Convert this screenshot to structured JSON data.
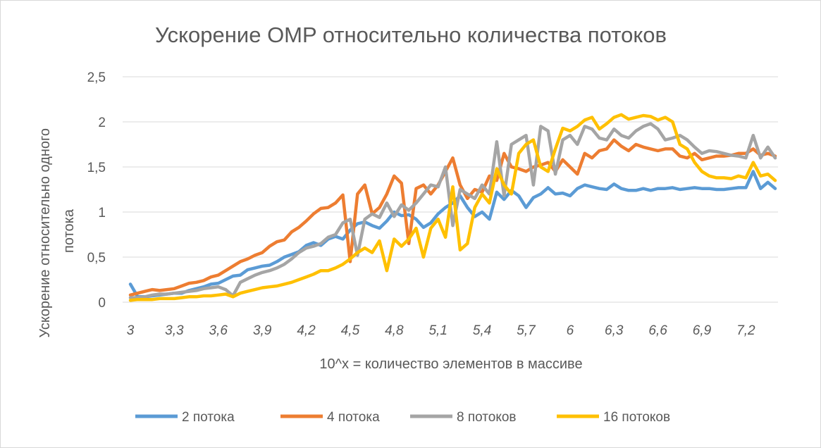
{
  "chart_data": {
    "type": "line",
    "title": "Ускорение OMP относительно количества потоков",
    "xlabel": "10^x = количество элементов в массиве",
    "ylabel_lines": [
      "Ускорение относительно одного",
      "потока"
    ],
    "ylim": [
      0,
      2.5
    ],
    "yticks": [
      "0",
      "0,5",
      "1",
      "1,5",
      "2",
      "2,5"
    ],
    "xticks": [
      "3",
      "3,3",
      "3,6",
      "3,9",
      "4,2",
      "4,5",
      "4,8",
      "5,1",
      "5,4",
      "5,7",
      "6",
      "6,3",
      "6,6",
      "6,9",
      "7,2"
    ],
    "x_start": 3,
    "x_step": 0.05,
    "grid": "horizontal",
    "legend_position": "bottom",
    "series": [
      {
        "name": "2 потока",
        "color": "#5B9BD5",
        "values": [
          0.2,
          0.06,
          0.06,
          0.07,
          0.08,
          0.09,
          0.1,
          0.1,
          0.13,
          0.15,
          0.17,
          0.2,
          0.21,
          0.25,
          0.29,
          0.3,
          0.36,
          0.38,
          0.4,
          0.41,
          0.45,
          0.5,
          0.53,
          0.56,
          0.63,
          0.66,
          0.63,
          0.7,
          0.73,
          0.7,
          0.8,
          0.87,
          0.89,
          0.85,
          0.82,
          0.9,
          1.0,
          0.96,
          0.97,
          0.92,
          0.83,
          0.88,
          0.98,
          1.05,
          1.1,
          1.18,
          1.05,
          0.95,
          1.0,
          0.92,
          1.22,
          1.14,
          1.24,
          1.18,
          1.05,
          1.16,
          1.2,
          1.27,
          1.2,
          1.21,
          1.18,
          1.26,
          1.3,
          1.28,
          1.26,
          1.25,
          1.31,
          1.26,
          1.24,
          1.24,
          1.26,
          1.24,
          1.26,
          1.26,
          1.27,
          1.25,
          1.26,
          1.27,
          1.26,
          1.26,
          1.25,
          1.25,
          1.26,
          1.27,
          1.27,
          1.45,
          1.26,
          1.33,
          1.26
        ]
      },
      {
        "name": "4 потока",
        "color": "#ED7D31",
        "values": [
          0.08,
          0.1,
          0.12,
          0.14,
          0.13,
          0.14,
          0.15,
          0.18,
          0.21,
          0.22,
          0.24,
          0.28,
          0.3,
          0.35,
          0.4,
          0.45,
          0.48,
          0.52,
          0.55,
          0.62,
          0.67,
          0.69,
          0.78,
          0.83,
          0.9,
          0.98,
          1.04,
          1.05,
          1.1,
          1.19,
          0.45,
          1.2,
          1.3,
          0.98,
          1.05,
          1.2,
          1.4,
          1.32,
          0.65,
          1.26,
          1.3,
          1.2,
          1.3,
          1.45,
          1.6,
          1.3,
          1.15,
          1.25,
          1.22,
          1.4,
          1.35,
          1.65,
          1.5,
          1.48,
          1.45,
          1.5,
          1.52,
          1.55,
          1.45,
          1.58,
          1.5,
          1.42,
          1.65,
          1.6,
          1.68,
          1.7,
          1.8,
          1.73,
          1.68,
          1.75,
          1.72,
          1.7,
          1.68,
          1.7,
          1.7,
          1.62,
          1.6,
          1.65,
          1.58,
          1.6,
          1.62,
          1.62,
          1.63,
          1.65,
          1.65,
          1.7,
          1.63,
          1.65,
          1.62
        ]
      },
      {
        "name": "8 потоков",
        "color": "#A5A5A5",
        "values": [
          0.05,
          0.05,
          0.06,
          0.08,
          0.09,
          0.09,
          0.1,
          0.11,
          0.12,
          0.13,
          0.15,
          0.16,
          0.17,
          0.14,
          0.07,
          0.22,
          0.26,
          0.3,
          0.33,
          0.35,
          0.38,
          0.42,
          0.48,
          0.55,
          0.6,
          0.62,
          0.65,
          0.72,
          0.75,
          0.88,
          0.92,
          0.52,
          0.92,
          0.98,
          0.94,
          1.1,
          0.95,
          1.08,
          1.02,
          1.1,
          1.2,
          1.3,
          1.28,
          1.5,
          0.85,
          1.25,
          1.2,
          1.15,
          1.3,
          1.2,
          1.78,
          1.18,
          1.75,
          1.8,
          1.85,
          1.3,
          1.95,
          1.9,
          1.42,
          1.8,
          1.85,
          1.75,
          1.95,
          1.92,
          1.82,
          1.8,
          1.92,
          1.85,
          1.82,
          1.9,
          1.95,
          1.98,
          1.92,
          1.8,
          1.82,
          1.85,
          1.8,
          1.72,
          1.65,
          1.68,
          1.67,
          1.65,
          1.63,
          1.62,
          1.6,
          1.85,
          1.6,
          1.72,
          1.6
        ]
      },
      {
        "name": "16 потоков",
        "color": "#FFC000",
        "values": [
          0.02,
          0.03,
          0.03,
          0.03,
          0.04,
          0.04,
          0.04,
          0.05,
          0.06,
          0.06,
          0.07,
          0.07,
          0.08,
          0.09,
          0.06,
          0.1,
          0.12,
          0.14,
          0.16,
          0.17,
          0.18,
          0.2,
          0.22,
          0.25,
          0.28,
          0.31,
          0.35,
          0.35,
          0.38,
          0.42,
          0.48,
          0.55,
          0.6,
          0.55,
          0.68,
          0.35,
          0.7,
          0.62,
          0.7,
          0.82,
          0.5,
          0.82,
          0.92,
          0.72,
          1.28,
          0.58,
          0.65,
          1.05,
          1.2,
          1.1,
          1.48,
          1.3,
          1.2,
          1.65,
          1.75,
          1.8,
          1.5,
          1.45,
          1.7,
          1.93,
          1.9,
          1.95,
          2.02,
          2.05,
          1.92,
          1.98,
          2.05,
          2.08,
          2.03,
          2.05,
          2.07,
          2.06,
          2.02,
          2.05,
          2.0,
          1.75,
          1.7,
          1.55,
          1.45,
          1.4,
          1.38,
          1.38,
          1.37,
          1.4,
          1.38,
          1.55,
          1.4,
          1.42,
          1.35
        ]
      }
    ]
  }
}
